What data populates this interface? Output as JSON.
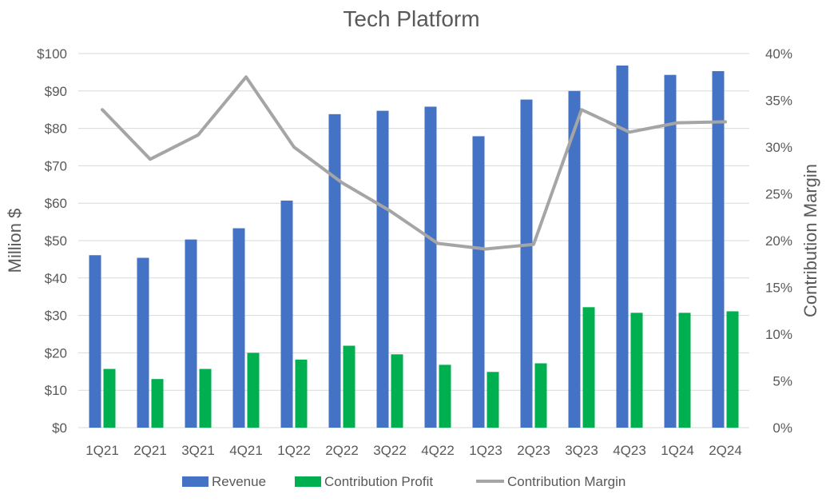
{
  "chart_data": {
    "type": "bar",
    "title": "Tech Platform",
    "ylabel": "Million $",
    "y2label": "Contribution Margin",
    "categories": [
      "1Q21",
      "2Q21",
      "3Q21",
      "4Q21",
      "1Q22",
      "2Q22",
      "3Q22",
      "4Q22",
      "1Q23",
      "2Q23",
      "3Q23",
      "4Q23",
      "1Q24",
      "2Q24"
    ],
    "ylim": [
      0,
      100
    ],
    "y2lim": [
      0,
      0.4
    ],
    "yticks": [
      "$0",
      "$10",
      "$20",
      "$30",
      "$40",
      "$50",
      "$60",
      "$70",
      "$80",
      "$90",
      "$100"
    ],
    "y2ticks": [
      "0%",
      "5%",
      "10%",
      "15%",
      "20%",
      "25%",
      "30%",
      "35%",
      "40%"
    ],
    "grid": true,
    "legend_position": "bottom",
    "series": [
      {
        "name": "Revenue",
        "type": "bar",
        "axis": "left",
        "color": "#4472C4",
        "values": [
          46.1,
          45.4,
          50.3,
          53.3,
          60.7,
          83.8,
          84.7,
          85.8,
          77.9,
          87.7,
          90.0,
          96.8,
          94.3,
          95.3
        ]
      },
      {
        "name": "Contribution Profit",
        "type": "bar",
        "axis": "left",
        "color": "#00B050",
        "values": [
          15.7,
          13.0,
          15.7,
          20.0,
          18.2,
          21.9,
          19.6,
          16.8,
          14.9,
          17.2,
          32.2,
          30.7,
          30.7,
          31.1
        ]
      },
      {
        "name": "Contribution Margin",
        "type": "line",
        "axis": "right",
        "color": "#A5A5A5",
        "values": [
          0.34,
          0.287,
          0.313,
          0.375,
          0.3,
          0.262,
          0.232,
          0.197,
          0.191,
          0.196,
          0.34,
          0.316,
          0.326,
          0.327
        ]
      }
    ]
  }
}
